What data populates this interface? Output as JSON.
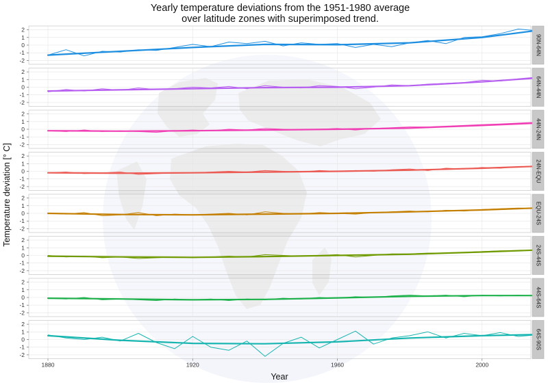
{
  "chart_data": {
    "type": "line",
    "title_line1": "Yearly temperature deviations from the 1951-1980 average",
    "title_line2": "over latitude zones with superimposed trend.",
    "xlabel": "Year",
    "ylabel": "Temperature deviation [° C]",
    "xlim": [
      1880,
      2015
    ],
    "ylim": [
      -2.5,
      2.5
    ],
    "x_ticks": [
      1880,
      1920,
      1960,
      2000
    ],
    "y_ticks": [
      2,
      1,
      0,
      -1,
      -2
    ],
    "grid": true,
    "background_graphic": "globe",
    "trend_line_width": 2.2,
    "panels": [
      {
        "zone": "90N-64N",
        "color": "#1e8fe0",
        "trend_x": [
          1880,
          1900,
          1920,
          1940,
          1960,
          1980,
          2000,
          2015
        ],
        "trend_y": [
          -1.3,
          -0.8,
          -0.3,
          0.1,
          0.05,
          0.3,
          1.0,
          1.9
        ],
        "annual_x": [
          1880,
          1885,
          1890,
          1895,
          1900,
          1905,
          1910,
          1915,
          1920,
          1925,
          1930,
          1935,
          1940,
          1945,
          1950,
          1955,
          1960,
          1965,
          1970,
          1975,
          1980,
          1985,
          1990,
          1995,
          2000,
          2005,
          2010,
          2015
        ],
        "annual_y": [
          -1.3,
          -0.6,
          -1.4,
          -0.8,
          -0.9,
          -0.6,
          -0.7,
          -0.3,
          0.1,
          -0.2,
          0.4,
          0.2,
          0.5,
          -0.1,
          0.3,
          0.1,
          0.2,
          -0.3,
          0.1,
          -0.2,
          0.3,
          0.6,
          0.2,
          1.0,
          1.1,
          1.5,
          2.1,
          1.9
        ]
      },
      {
        "zone": "64N-44N",
        "color": "#b65ff0",
        "trend_x": [
          1880,
          1900,
          1920,
          1940,
          1960,
          1980,
          2000,
          2015
        ],
        "trend_y": [
          -0.5,
          -0.35,
          -0.2,
          -0.05,
          0.0,
          0.2,
          0.7,
          1.2
        ],
        "annual_x": [
          1880,
          1885,
          1890,
          1895,
          1900,
          1905,
          1910,
          1915,
          1920,
          1925,
          1930,
          1935,
          1940,
          1945,
          1950,
          1955,
          1960,
          1965,
          1970,
          1975,
          1980,
          1985,
          1990,
          1995,
          2000,
          2005,
          2010,
          2015
        ],
        "annual_y": [
          -0.6,
          -0.3,
          -0.5,
          -0.2,
          -0.4,
          -0.1,
          -0.3,
          -0.2,
          0.0,
          -0.1,
          0.1,
          -0.2,
          0.2,
          0.0,
          -0.1,
          0.2,
          0.1,
          -0.2,
          0.0,
          0.3,
          0.2,
          0.4,
          0.5,
          0.6,
          0.9,
          0.8,
          1.1,
          1.3
        ]
      },
      {
        "zone": "44N-24N",
        "color": "#f03fb4",
        "trend_x": [
          1880,
          1900,
          1920,
          1940,
          1960,
          1980,
          2000,
          2015
        ],
        "trend_y": [
          -0.2,
          -0.25,
          -0.2,
          -0.1,
          0.0,
          0.15,
          0.5,
          0.8
        ],
        "annual_x": [
          1880,
          1885,
          1890,
          1895,
          1900,
          1905,
          1910,
          1915,
          1920,
          1925,
          1930,
          1935,
          1940,
          1945,
          1950,
          1955,
          1960,
          1965,
          1970,
          1975,
          1980,
          1985,
          1990,
          1995,
          2000,
          2005,
          2010,
          2015
        ],
        "annual_y": [
          -0.2,
          -0.3,
          -0.1,
          -0.3,
          -0.2,
          -0.3,
          -0.4,
          -0.2,
          -0.1,
          -0.2,
          0.0,
          -0.1,
          0.1,
          0.0,
          -0.1,
          0.0,
          0.1,
          -0.1,
          0.1,
          0.2,
          0.3,
          0.3,
          0.4,
          0.5,
          0.6,
          0.7,
          0.8,
          0.9
        ]
      },
      {
        "zone": "24N-EQU",
        "color": "#ec5a54",
        "trend_x": [
          1880,
          1900,
          1920,
          1940,
          1960,
          1980,
          2000,
          2015
        ],
        "trend_y": [
          -0.2,
          -0.25,
          -0.2,
          -0.1,
          0.0,
          0.15,
          0.4,
          0.65
        ],
        "annual_x": [
          1880,
          1885,
          1890,
          1895,
          1900,
          1905,
          1910,
          1915,
          1920,
          1925,
          1930,
          1935,
          1940,
          1945,
          1950,
          1955,
          1960,
          1965,
          1970,
          1975,
          1980,
          1985,
          1990,
          1995,
          2000,
          2005,
          2010,
          2015
        ],
        "annual_y": [
          -0.2,
          -0.1,
          -0.3,
          -0.2,
          -0.1,
          -0.4,
          -0.3,
          -0.2,
          -0.2,
          -0.1,
          0.0,
          -0.1,
          0.1,
          0.0,
          -0.1,
          0.1,
          0.0,
          0.1,
          0.0,
          0.2,
          0.3,
          0.1,
          0.4,
          0.3,
          0.5,
          0.4,
          0.6,
          0.7
        ]
      },
      {
        "zone": "EQU-24S",
        "color": "#c47f00",
        "trend_x": [
          1880,
          1900,
          1920,
          1940,
          1960,
          1980,
          2000,
          2015
        ],
        "trend_y": [
          0.0,
          -0.15,
          -0.2,
          -0.1,
          0.0,
          0.2,
          0.45,
          0.7
        ],
        "annual_x": [
          1880,
          1885,
          1890,
          1895,
          1900,
          1905,
          1910,
          1915,
          1920,
          1925,
          1930,
          1935,
          1940,
          1945,
          1950,
          1955,
          1960,
          1965,
          1970,
          1975,
          1980,
          1985,
          1990,
          1995,
          2000,
          2005,
          2010,
          2015
        ],
        "annual_y": [
          0.0,
          -0.1,
          0.1,
          -0.3,
          -0.2,
          0.1,
          -0.3,
          -0.1,
          -0.2,
          -0.1,
          0.0,
          -0.2,
          0.2,
          0.0,
          -0.1,
          0.1,
          0.0,
          -0.1,
          0.1,
          0.2,
          0.3,
          0.2,
          0.4,
          0.3,
          0.5,
          0.6,
          0.7,
          0.6
        ]
      },
      {
        "zone": "24S-44S",
        "color": "#6f9a00",
        "trend_x": [
          1880,
          1900,
          1920,
          1940,
          1960,
          1980,
          2000,
          2015
        ],
        "trend_y": [
          -0.1,
          -0.2,
          -0.25,
          -0.15,
          0.0,
          0.15,
          0.45,
          0.7
        ],
        "annual_x": [
          1880,
          1885,
          1890,
          1895,
          1900,
          1905,
          1910,
          1915,
          1920,
          1925,
          1930,
          1935,
          1940,
          1945,
          1950,
          1955,
          1960,
          1965,
          1970,
          1975,
          1980,
          1985,
          1990,
          1995,
          2000,
          2005,
          2010,
          2015
        ],
        "annual_y": [
          0.0,
          -0.2,
          -0.1,
          -0.3,
          -0.2,
          -0.4,
          -0.3,
          -0.2,
          -0.3,
          -0.2,
          -0.1,
          -0.2,
          0.1,
          0.0,
          -0.1,
          0.0,
          0.1,
          -0.2,
          0.0,
          0.2,
          0.2,
          0.3,
          0.3,
          0.4,
          0.5,
          0.6,
          0.6,
          0.7
        ]
      },
      {
        "zone": "44S-64S",
        "color": "#1db14b",
        "trend_x": [
          1880,
          1900,
          1920,
          1940,
          1960,
          1980,
          2000,
          2015
        ],
        "trend_y": [
          -0.1,
          -0.2,
          -0.3,
          -0.25,
          -0.05,
          0.15,
          0.25,
          0.25
        ],
        "annual_x": [
          1880,
          1885,
          1890,
          1895,
          1900,
          1905,
          1910,
          1915,
          1920,
          1925,
          1930,
          1935,
          1940,
          1945,
          1950,
          1955,
          1960,
          1965,
          1970,
          1975,
          1980,
          1985,
          1990,
          1995,
          2000,
          2005,
          2010,
          2015
        ],
        "annual_y": [
          -0.1,
          -0.2,
          0.0,
          -0.3,
          -0.2,
          -0.3,
          -0.4,
          -0.2,
          -0.3,
          -0.2,
          -0.4,
          -0.2,
          -0.3,
          -0.1,
          -0.2,
          0.0,
          -0.1,
          0.1,
          0.0,
          0.2,
          0.3,
          0.2,
          0.3,
          0.1,
          0.3,
          0.2,
          0.3,
          0.2
        ]
      },
      {
        "zone": "64S-90S",
        "color": "#17b5b0",
        "trend_x": [
          1880,
          1900,
          1920,
          1940,
          1960,
          1980,
          2000,
          2015
        ],
        "trend_y": [
          0.5,
          -0.1,
          -0.5,
          -0.55,
          -0.3,
          0.2,
          0.5,
          0.65
        ],
        "annual_x": [
          1880,
          1885,
          1890,
          1895,
          1900,
          1905,
          1910,
          1915,
          1920,
          1925,
          1930,
          1935,
          1940,
          1945,
          1950,
          1955,
          1960,
          1965,
          1970,
          1975,
          1980,
          1985,
          1990,
          1995,
          2000,
          2005,
          2010,
          2015
        ],
        "annual_y": [
          0.6,
          0.2,
          0.0,
          0.3,
          -0.2,
          0.8,
          -0.4,
          -1.2,
          0.4,
          -1.0,
          -1.4,
          -0.2,
          -2.2,
          -0.5,
          0.3,
          -1.1,
          0.0,
          1.1,
          -0.6,
          0.2,
          0.5,
          1.0,
          0.2,
          0.8,
          0.5,
          0.9,
          0.4,
          0.6
        ]
      }
    ]
  }
}
